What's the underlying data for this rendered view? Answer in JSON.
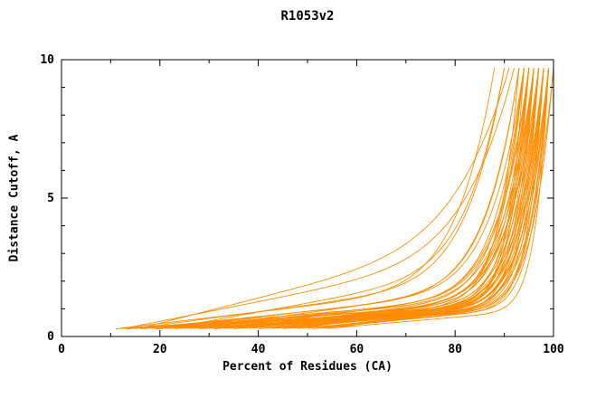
{
  "page": {
    "background": "#ffffff"
  },
  "chart_data": {
    "type": "line",
    "title": "R1053v2",
    "xlabel": "Percent of Residues (CA)",
    "ylabel": "Distance Cutoff, A",
    "xlim": [
      0,
      100
    ],
    "ylim": [
      0,
      10
    ],
    "x_major_ticks": [
      0,
      20,
      40,
      60,
      80,
      100
    ],
    "x_minor_step": 10,
    "y_major_ticks": [
      0,
      5,
      10
    ],
    "y_minor_step": 1,
    "grid": false,
    "legend": "none",
    "line_color": "#ff8c00",
    "axis_color": "#000000",
    "ytop": 9.7,
    "series_format": [
      "x_start_percent",
      "x_end_percent",
      "y_start_A",
      "linear_rise_A",
      "steepness_exponent"
    ],
    "series_model": "x(t)=x0+(xe-x0)*t ; y(t)=y0+a*t+(ytop-y0-a)*t^p for t in [0,1]",
    "series": [
      [
        11,
        97,
        0.28,
        1.0,
        14
      ],
      [
        12,
        99,
        0.3,
        0.8,
        16
      ],
      [
        12,
        88,
        0.3,
        1.6,
        10
      ],
      [
        13,
        95,
        0.27,
        1.2,
        13
      ],
      [
        14,
        100,
        0.3,
        0.7,
        18
      ],
      [
        15,
        90,
        0.29,
        1.8,
        10
      ],
      [
        15,
        96,
        0.3,
        1.0,
        14
      ],
      [
        16,
        98,
        0.28,
        0.9,
        15
      ],
      [
        17,
        93,
        0.3,
        1.4,
        11
      ],
      [
        18,
        99,
        0.3,
        0.8,
        17
      ],
      [
        19,
        97,
        0.27,
        1.1,
        13
      ],
      [
        20,
        94,
        0.3,
        1.5,
        11
      ],
      [
        21,
        98,
        0.29,
        0.9,
        15
      ],
      [
        22,
        96,
        0.3,
        1.2,
        12
      ],
      [
        23,
        99,
        0.28,
        0.8,
        16
      ],
      [
        24,
        95,
        0.3,
        1.3,
        12
      ],
      [
        25,
        97,
        0.3,
        1.0,
        14
      ],
      [
        26,
        100,
        0.29,
        0.7,
        18
      ],
      [
        27,
        93,
        0.3,
        1.6,
        10
      ],
      [
        28,
        98,
        0.28,
        0.9,
        15
      ],
      [
        29,
        96,
        0.3,
        1.1,
        13
      ],
      [
        30,
        99,
        0.3,
        0.8,
        16
      ],
      [
        31,
        94,
        0.27,
        1.4,
        11
      ],
      [
        32,
        97,
        0.3,
        1.0,
        14
      ],
      [
        33,
        95,
        0.29,
        1.2,
        12
      ],
      [
        34,
        98,
        0.3,
        0.9,
        15
      ],
      [
        35,
        96,
        0.28,
        1.1,
        13
      ],
      [
        36,
        99,
        0.3,
        0.8,
        17
      ],
      [
        37,
        94,
        0.3,
        1.3,
        11
      ],
      [
        38,
        97,
        0.29,
        1.0,
        14
      ],
      [
        39,
        95,
        0.3,
        1.2,
        12
      ],
      [
        40,
        98,
        0.28,
        0.9,
        15
      ],
      [
        41,
        96,
        0.3,
        1.0,
        13
      ],
      [
        42,
        99,
        0.3,
        0.8,
        16
      ],
      [
        43,
        94,
        0.29,
        1.3,
        11
      ],
      [
        44,
        97,
        0.3,
        1.0,
        14
      ],
      [
        45,
        95,
        0.28,
        1.1,
        12
      ],
      [
        46,
        98,
        0.3,
        0.9,
        15
      ],
      [
        47,
        96,
        0.3,
        1.0,
        13
      ],
      [
        48,
        99,
        0.29,
        0.8,
        16
      ],
      [
        49,
        93,
        0.3,
        1.2,
        11
      ],
      [
        50,
        97,
        0.3,
        0.9,
        14
      ],
      [
        51,
        95,
        0.28,
        1.0,
        12
      ],
      [
        52,
        98,
        0.3,
        0.8,
        15
      ],
      [
        53,
        96,
        0.3,
        0.9,
        13
      ],
      [
        54,
        99,
        0.29,
        0.7,
        17
      ],
      [
        55,
        94,
        0.3,
        1.0,
        12
      ],
      [
        13,
        92,
        0.3,
        2.8,
        8
      ],
      [
        16,
        91,
        0.3,
        3.4,
        7
      ],
      [
        22,
        90,
        0.3,
        2.2,
        9
      ]
    ]
  }
}
